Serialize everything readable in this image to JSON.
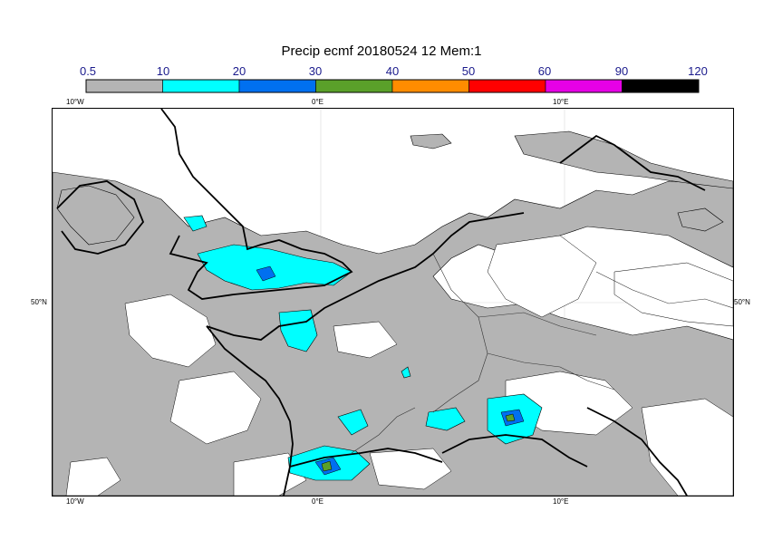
{
  "title": "Precip ecmf 20180524 12 Mem:1",
  "legend": {
    "labels": [
      "0.5",
      "10",
      "20",
      "30",
      "40",
      "50",
      "60",
      "90",
      "120"
    ],
    "colors": [
      "#b4b4b4",
      "#00ffff",
      "#0070f0",
      "#5aa02a",
      "#ff8c00",
      "#ff0000",
      "#e600e6",
      "#000000"
    ]
  },
  "axes": {
    "top_lon": [
      "10°W",
      "0°E",
      "10°E"
    ],
    "bottom_lon": [
      "10°W",
      "0°E",
      "10°E"
    ],
    "left_lat": "50°N",
    "right_lat": "50°N"
  },
  "colors": {
    "precip_light": "#b4b4b4",
    "precip_10": "#00ffff",
    "precip_20": "#0070f0",
    "precip_30": "#5aa02a",
    "land_border": "#000000"
  }
}
